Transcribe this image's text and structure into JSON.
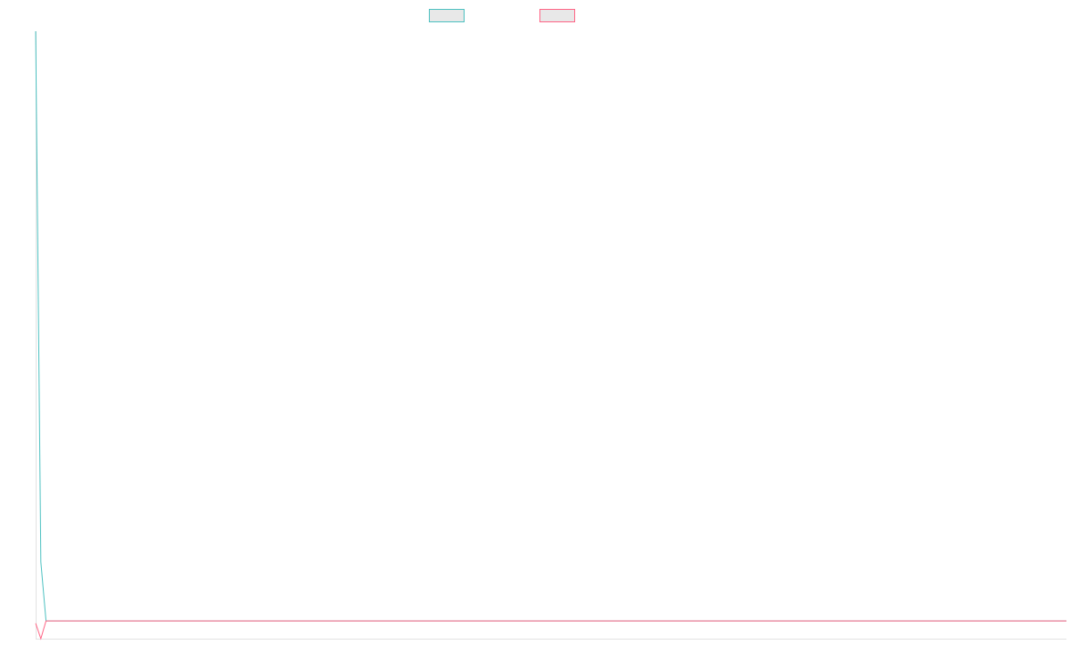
{
  "chart_data": {
    "type": "line",
    "title": "",
    "xlabel": "",
    "ylabel": "",
    "grid": false,
    "legend_position": "top-center",
    "x_count": 200,
    "series": [
      {
        "color": "#4BC0C0",
        "values": [
          1000,
          100,
          0,
          0,
          0,
          0,
          0,
          0,
          0,
          0,
          0,
          0,
          0,
          0,
          0,
          0,
          0,
          0,
          0,
          0,
          0,
          0,
          0,
          0,
          0,
          0,
          0,
          0,
          0,
          0,
          0,
          0,
          0,
          0,
          0,
          0,
          0,
          0,
          0,
          0,
          0,
          0,
          0,
          0,
          0,
          0,
          0,
          0,
          0,
          0,
          0,
          0,
          0,
          0,
          0,
          0,
          0,
          0,
          0,
          0,
          0,
          0,
          0,
          0,
          0,
          0,
          0,
          0,
          0,
          0,
          0,
          0,
          0,
          0,
          0,
          0,
          0,
          0,
          0,
          0,
          0,
          0,
          0,
          0,
          0,
          0,
          0,
          0,
          0,
          0,
          0,
          0,
          0,
          0,
          0,
          0,
          0,
          0,
          0,
          0,
          0,
          0,
          0,
          0,
          0,
          0,
          0,
          0,
          0,
          0,
          0,
          0,
          0,
          0,
          0,
          0,
          0,
          0,
          0,
          0,
          0,
          0,
          0,
          0,
          0,
          0,
          0,
          0,
          0,
          0,
          0,
          0,
          0,
          0,
          0,
          0,
          0,
          0,
          0,
          0,
          0,
          0,
          0,
          0,
          0,
          0,
          0,
          0,
          0,
          0,
          0,
          0,
          0,
          0,
          0,
          0,
          0,
          0,
          0,
          0,
          0,
          0,
          0,
          0,
          0,
          0,
          0,
          0,
          0,
          0,
          0,
          0,
          0,
          0,
          0,
          0,
          0,
          0,
          0,
          0,
          0,
          0,
          0,
          0,
          0,
          0,
          0,
          0,
          0,
          0,
          0,
          0,
          0,
          0,
          0,
          0,
          0,
          0,
          0,
          0
        ]
      },
      {
        "color": "#FF6384",
        "values": [
          -4,
          -30,
          0,
          0,
          0,
          0,
          0,
          0,
          0,
          0,
          0,
          0,
          0,
          0,
          0,
          0,
          0,
          0,
          0,
          0,
          0,
          0,
          0,
          0,
          0,
          0,
          0,
          0,
          0,
          0,
          0,
          0,
          0,
          0,
          0,
          0,
          0,
          0,
          0,
          0,
          0,
          0,
          0,
          0,
          0,
          0,
          0,
          0,
          0,
          0,
          0,
          0,
          0,
          0,
          0,
          0,
          0,
          0,
          0,
          0,
          0,
          0,
          0,
          0,
          0,
          0,
          0,
          0,
          0,
          0,
          0,
          0,
          0,
          0,
          0,
          0,
          0,
          0,
          0,
          0,
          0,
          0,
          0,
          0,
          0,
          0,
          0,
          0,
          0,
          0,
          0,
          0,
          0,
          0,
          0,
          0,
          0,
          0,
          0,
          0,
          0,
          0,
          0,
          0,
          0,
          0,
          0,
          0,
          0,
          0,
          0,
          0,
          0,
          0,
          0,
          0,
          0,
          0,
          0,
          0,
          0,
          0,
          0,
          0,
          0,
          0,
          0,
          0,
          0,
          0,
          0,
          0,
          0,
          0,
          0,
          0,
          0,
          0,
          0,
          0,
          0,
          0,
          0,
          0,
          0,
          0,
          0,
          0,
          0,
          0,
          0,
          0,
          0,
          0,
          0,
          0,
          0,
          0,
          0,
          0,
          0,
          0,
          0,
          0,
          0,
          0,
          0,
          0,
          0,
          0,
          0,
          0,
          0,
          0,
          0,
          0,
          0,
          0,
          0,
          0,
          0,
          0,
          0,
          0,
          0,
          0,
          0,
          0,
          0,
          0,
          0,
          0,
          0,
          0,
          0,
          0,
          0,
          0,
          0,
          0
        ]
      }
    ],
    "ylim": [
      -30,
      1000
    ]
  }
}
